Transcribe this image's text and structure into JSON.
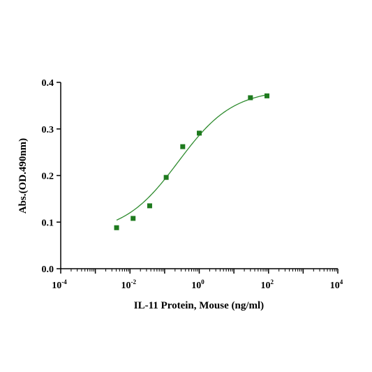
{
  "chart_data": {
    "type": "scatter",
    "title": "",
    "xlabel": "IL-11 Protein, Mouse (ng/ml)",
    "ylabel": "Abs.(OD.490nm)",
    "x_scale": "log",
    "xlim": [
      0.0001,
      10000
    ],
    "ylim": [
      0,
      0.4
    ],
    "x_ticks": [
      {
        "value": 0.0001,
        "base": "10",
        "exp": "-4"
      },
      {
        "value": 0.01,
        "base": "10",
        "exp": "-2"
      },
      {
        "value": 1,
        "base": "10",
        "exp": "0"
      },
      {
        "value": 100,
        "base": "10",
        "exp": "2"
      },
      {
        "value": 10000,
        "base": "10",
        "exp": "4"
      }
    ],
    "y_ticks": [
      {
        "value": 0,
        "label": "0.0"
      },
      {
        "value": 0.1,
        "label": "0.1"
      },
      {
        "value": 0.2,
        "label": "0.2"
      },
      {
        "value": 0.3,
        "label": "0.3"
      },
      {
        "value": 0.4,
        "label": "0.4"
      }
    ],
    "grid": false,
    "legend": "none",
    "series": [
      {
        "points": [
          {
            "x": 0.0041,
            "y": 0.088
          },
          {
            "x": 0.0123,
            "y": 0.108
          },
          {
            "x": 0.037,
            "y": 0.135
          },
          {
            "x": 0.111,
            "y": 0.196
          },
          {
            "x": 0.333,
            "y": 0.262
          },
          {
            "x": 1.0,
            "y": 0.291
          },
          {
            "x": 30,
            "y": 0.367
          },
          {
            "x": 90,
            "y": 0.371
          }
        ],
        "marker": "square",
        "color": "#1e7a1e"
      }
    ],
    "fit_curve": {
      "model": "4PL",
      "bottom": 0.075,
      "top": 0.385,
      "ec50": 0.25,
      "hill": 0.55,
      "x_range": [
        0.0041,
        90
      ],
      "color": "#2e8b2e"
    }
  }
}
